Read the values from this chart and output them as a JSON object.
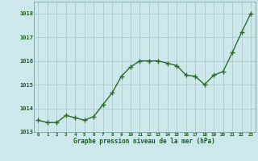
{
  "x": [
    0,
    1,
    2,
    3,
    4,
    5,
    6,
    7,
    8,
    9,
    10,
    11,
    12,
    13,
    14,
    15,
    16,
    17,
    18,
    19,
    20,
    21,
    22,
    23
  ],
  "y": [
    1013.5,
    1013.4,
    1013.4,
    1013.7,
    1013.6,
    1013.5,
    1013.65,
    1014.15,
    1014.65,
    1015.35,
    1015.75,
    1016.0,
    1016.0,
    1016.0,
    1015.9,
    1015.8,
    1015.4,
    1015.35,
    1015.0,
    1015.4,
    1015.55,
    1016.35,
    1017.2,
    1018.0
  ],
  "line_color": "#2d6a2d",
  "marker_color": "#2d6a2d",
  "bg_color": "#cce8ea",
  "grid_color": "#b0c8cc",
  "border_color": "#7aa0a4",
  "xlabel": "Graphe pression niveau de la mer (hPa)",
  "xlabel_color": "#1a5c1a",
  "tick_color": "#1a5c1a",
  "ylim": [
    1013.0,
    1018.5
  ],
  "xlim": [
    -0.5,
    23.5
  ],
  "yticks": [
    1013,
    1014,
    1015,
    1016,
    1017,
    1018
  ],
  "xticks": [
    0,
    1,
    2,
    3,
    4,
    5,
    6,
    7,
    8,
    9,
    10,
    11,
    12,
    13,
    14,
    15,
    16,
    17,
    18,
    19,
    20,
    21,
    22,
    23
  ],
  "marker_size": 2.8,
  "line_width": 1.0
}
